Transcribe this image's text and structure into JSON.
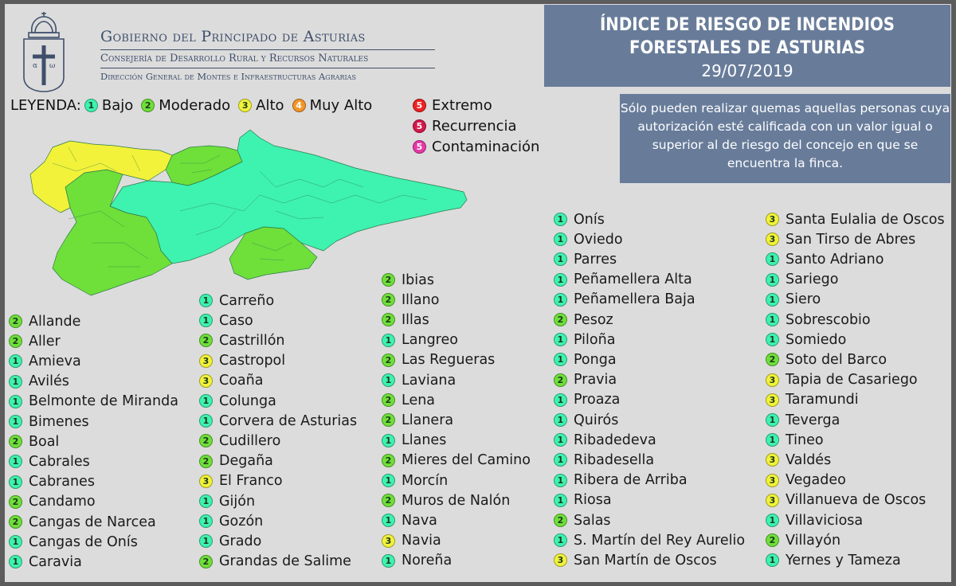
{
  "header": {
    "org_line1": "Gobierno del Principado de Asturias",
    "org_line2": "Consejería de Desarrollo Rural y Recursos Naturales",
    "org_line3": "Dirección General de Montes e Infraestructuras Agrarias",
    "title_line1": "ÍNDICE DE RIESGO DE INCENDIOS",
    "title_line2": "FORESTALES DE ASTURIAS",
    "date": "29/07/2019"
  },
  "legend": {
    "prefix": "LEYENDA:",
    "items": [
      {
        "num": "1",
        "label": "Bajo",
        "color": "#3ef2b0"
      },
      {
        "num": "2",
        "label": "Moderado",
        "color": "#6fdf3a"
      },
      {
        "num": "3",
        "label": "Alto",
        "color": "#f2f23a"
      },
      {
        "num": "4",
        "label": "Muy Alto",
        "color": "#f2962a"
      },
      {
        "num": "5",
        "label": "Extremo",
        "color": "#ee2222"
      },
      {
        "num": "5",
        "label": "Recurrencia",
        "color": "#d4184a"
      },
      {
        "num": "5",
        "label": "Contaminación",
        "color": "#e63aa8"
      }
    ]
  },
  "notice": "Sólo pueden realizar quemas aquellas personas cuya autorización esté calificada con un valor igual o superior al de riesgo del concejo en que se encuentra la finca.",
  "colors": {
    "level1": "#3ef2b0",
    "level2": "#6fdf3a",
    "level3": "#f2f23a"
  },
  "columns": [
    [
      {
        "name": "Allande",
        "level": 2
      },
      {
        "name": "Aller",
        "level": 2
      },
      {
        "name": "Amieva",
        "level": 1
      },
      {
        "name": "Avilés",
        "level": 1
      },
      {
        "name": "Belmonte de Miranda",
        "level": 1
      },
      {
        "name": "Bimenes",
        "level": 1
      },
      {
        "name": "Boal",
        "level": 2
      },
      {
        "name": "Cabrales",
        "level": 1
      },
      {
        "name": "Cabranes",
        "level": 1
      },
      {
        "name": "Candamo",
        "level": 2
      },
      {
        "name": "Cangas de Narcea",
        "level": 2
      },
      {
        "name": "Cangas de Onís",
        "level": 1
      },
      {
        "name": "Caravia",
        "level": 1
      }
    ],
    [
      {
        "name": "Carreño",
        "level": 1
      },
      {
        "name": "Caso",
        "level": 1
      },
      {
        "name": "Castrillón",
        "level": 2
      },
      {
        "name": "Castropol",
        "level": 3
      },
      {
        "name": "Coaña",
        "level": 3
      },
      {
        "name": "Colunga",
        "level": 1
      },
      {
        "name": "Corvera de Asturias",
        "level": 1
      },
      {
        "name": "Cudillero",
        "level": 2
      },
      {
        "name": "Degaña",
        "level": 2
      },
      {
        "name": "El Franco",
        "level": 3
      },
      {
        "name": "Gijón",
        "level": 1
      },
      {
        "name": "Gozón",
        "level": 1
      },
      {
        "name": "Grado",
        "level": 1
      },
      {
        "name": "Grandas de Salime",
        "level": 2
      }
    ],
    [
      {
        "name": "Ibias",
        "level": 2
      },
      {
        "name": "Illano",
        "level": 2
      },
      {
        "name": "Illas",
        "level": 2
      },
      {
        "name": "Langreo",
        "level": 1
      },
      {
        "name": "Las Regueras",
        "level": 2
      },
      {
        "name": "Laviana",
        "level": 1
      },
      {
        "name": "Lena",
        "level": 2
      },
      {
        "name": "Llanera",
        "level": 2
      },
      {
        "name": "Llanes",
        "level": 1
      },
      {
        "name": "Mieres del Camino",
        "level": 2
      },
      {
        "name": "Morcín",
        "level": 1
      },
      {
        "name": "Muros de Nalón",
        "level": 2
      },
      {
        "name": "Nava",
        "level": 1
      },
      {
        "name": "Navia",
        "level": 3
      },
      {
        "name": "Noreña",
        "level": 1
      }
    ],
    [
      {
        "name": "Onís",
        "level": 1
      },
      {
        "name": "Oviedo",
        "level": 1
      },
      {
        "name": "Parres",
        "level": 1
      },
      {
        "name": "Peñamellera Alta",
        "level": 1
      },
      {
        "name": "Peñamellera Baja",
        "level": 1
      },
      {
        "name": "Pesoz",
        "level": 2
      },
      {
        "name": "Piloña",
        "level": 1
      },
      {
        "name": "Ponga",
        "level": 1
      },
      {
        "name": "Pravia",
        "level": 2
      },
      {
        "name": "Proaza",
        "level": 1
      },
      {
        "name": "Quirós",
        "level": 1
      },
      {
        "name": "Ribadedeva",
        "level": 1
      },
      {
        "name": "Ribadesella",
        "level": 1
      },
      {
        "name": "Ribera de Arriba",
        "level": 1
      },
      {
        "name": "Riosa",
        "level": 1
      },
      {
        "name": "Salas",
        "level": 2
      },
      {
        "name": "S. Martín del Rey Aurelio",
        "level": 1
      },
      {
        "name": "San Martín de Oscos",
        "level": 3
      }
    ],
    [
      {
        "name": "Santa Eulalia de Oscos",
        "level": 3
      },
      {
        "name": "San Tirso de Abres",
        "level": 3
      },
      {
        "name": "Santo Adriano",
        "level": 1
      },
      {
        "name": "Sariego",
        "level": 1
      },
      {
        "name": "Siero",
        "level": 1
      },
      {
        "name": "Sobrescobio",
        "level": 1
      },
      {
        "name": "Somiedo",
        "level": 1
      },
      {
        "name": "Soto del Barco",
        "level": 2
      },
      {
        "name": "Tapia de Casariego",
        "level": 3
      },
      {
        "name": "Taramundi",
        "level": 3
      },
      {
        "name": "Teverga",
        "level": 1
      },
      {
        "name": "Tineo",
        "level": 1
      },
      {
        "name": "Valdés",
        "level": 3
      },
      {
        "name": "Vegadeo",
        "level": 3
      },
      {
        "name": "Villanueva de Oscos",
        "level": 3
      },
      {
        "name": "Villaviciosa",
        "level": 1
      },
      {
        "name": "Villayón",
        "level": 2
      },
      {
        "name": "Yernes y Tameza",
        "level": 1
      }
    ]
  ]
}
